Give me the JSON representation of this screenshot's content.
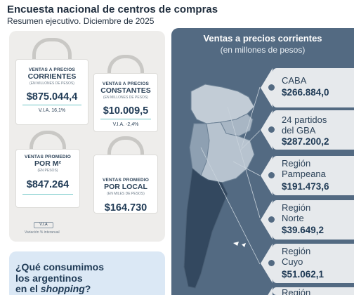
{
  "header": {
    "title": "Encuesta nacional de centros de compras",
    "subtitle": "Resumen ejecutivo. Diciembre de 2025"
  },
  "bags": [
    {
      "line1": "VENTAS A PRECIOS",
      "line2": "CORRIENTES",
      "note": "(EN MILLONES DE PESOS)",
      "value": "$875.044,4",
      "via": "V.I.A. 16,1%"
    },
    {
      "line1": "VENTAS A PRECIOS",
      "line2": "CONSTANTES",
      "note": "(EN MILLONES DE PESOS)",
      "value": "$10.009,5",
      "via": "V.I.A. -2,4%"
    },
    {
      "line1": "VENTAS PROMEDIO",
      "line2": "POR M²",
      "note": "(EN PESOS)",
      "value": "$847.264",
      "via": ""
    },
    {
      "line1": "VENTAS PROMEDIO",
      "line2": "POR LOCAL",
      "note": "(EN MILES DE PESOS)",
      "value": "$164.730",
      "via": ""
    }
  ],
  "legend": {
    "box": "V.I.A",
    "text": "Variación % interanual"
  },
  "question": {
    "line1": "¿Qué consumimos",
    "line2": "los argentinos",
    "line3_pre": "en el ",
    "line3_ital": "shopping",
    "line3_post": "?"
  },
  "regions_panel": {
    "title": "Ventas a precios corrientes",
    "subtitle": "(en millones de pesos)",
    "regions": [
      {
        "name1": "CABA",
        "name2": "",
        "value": "$266.884,0"
      },
      {
        "name1": "24 partidos",
        "name2": "del GBA",
        "value": "$287.200,2"
      },
      {
        "name1": "Región",
        "name2": "Pampeana",
        "value": "$191.473,6"
      },
      {
        "name1": "Región",
        "name2": "Norte",
        "value": "$39.649,2"
      },
      {
        "name1": "Región",
        "name2": "Cuyo",
        "value": "$51.062,1"
      },
      {
        "name1": "Región",
        "name2": "",
        "value": ""
      }
    ]
  },
  "colors": {
    "panel": "#536a82",
    "tag": "#e6e9ec",
    "accent": "#6fc6c6"
  }
}
